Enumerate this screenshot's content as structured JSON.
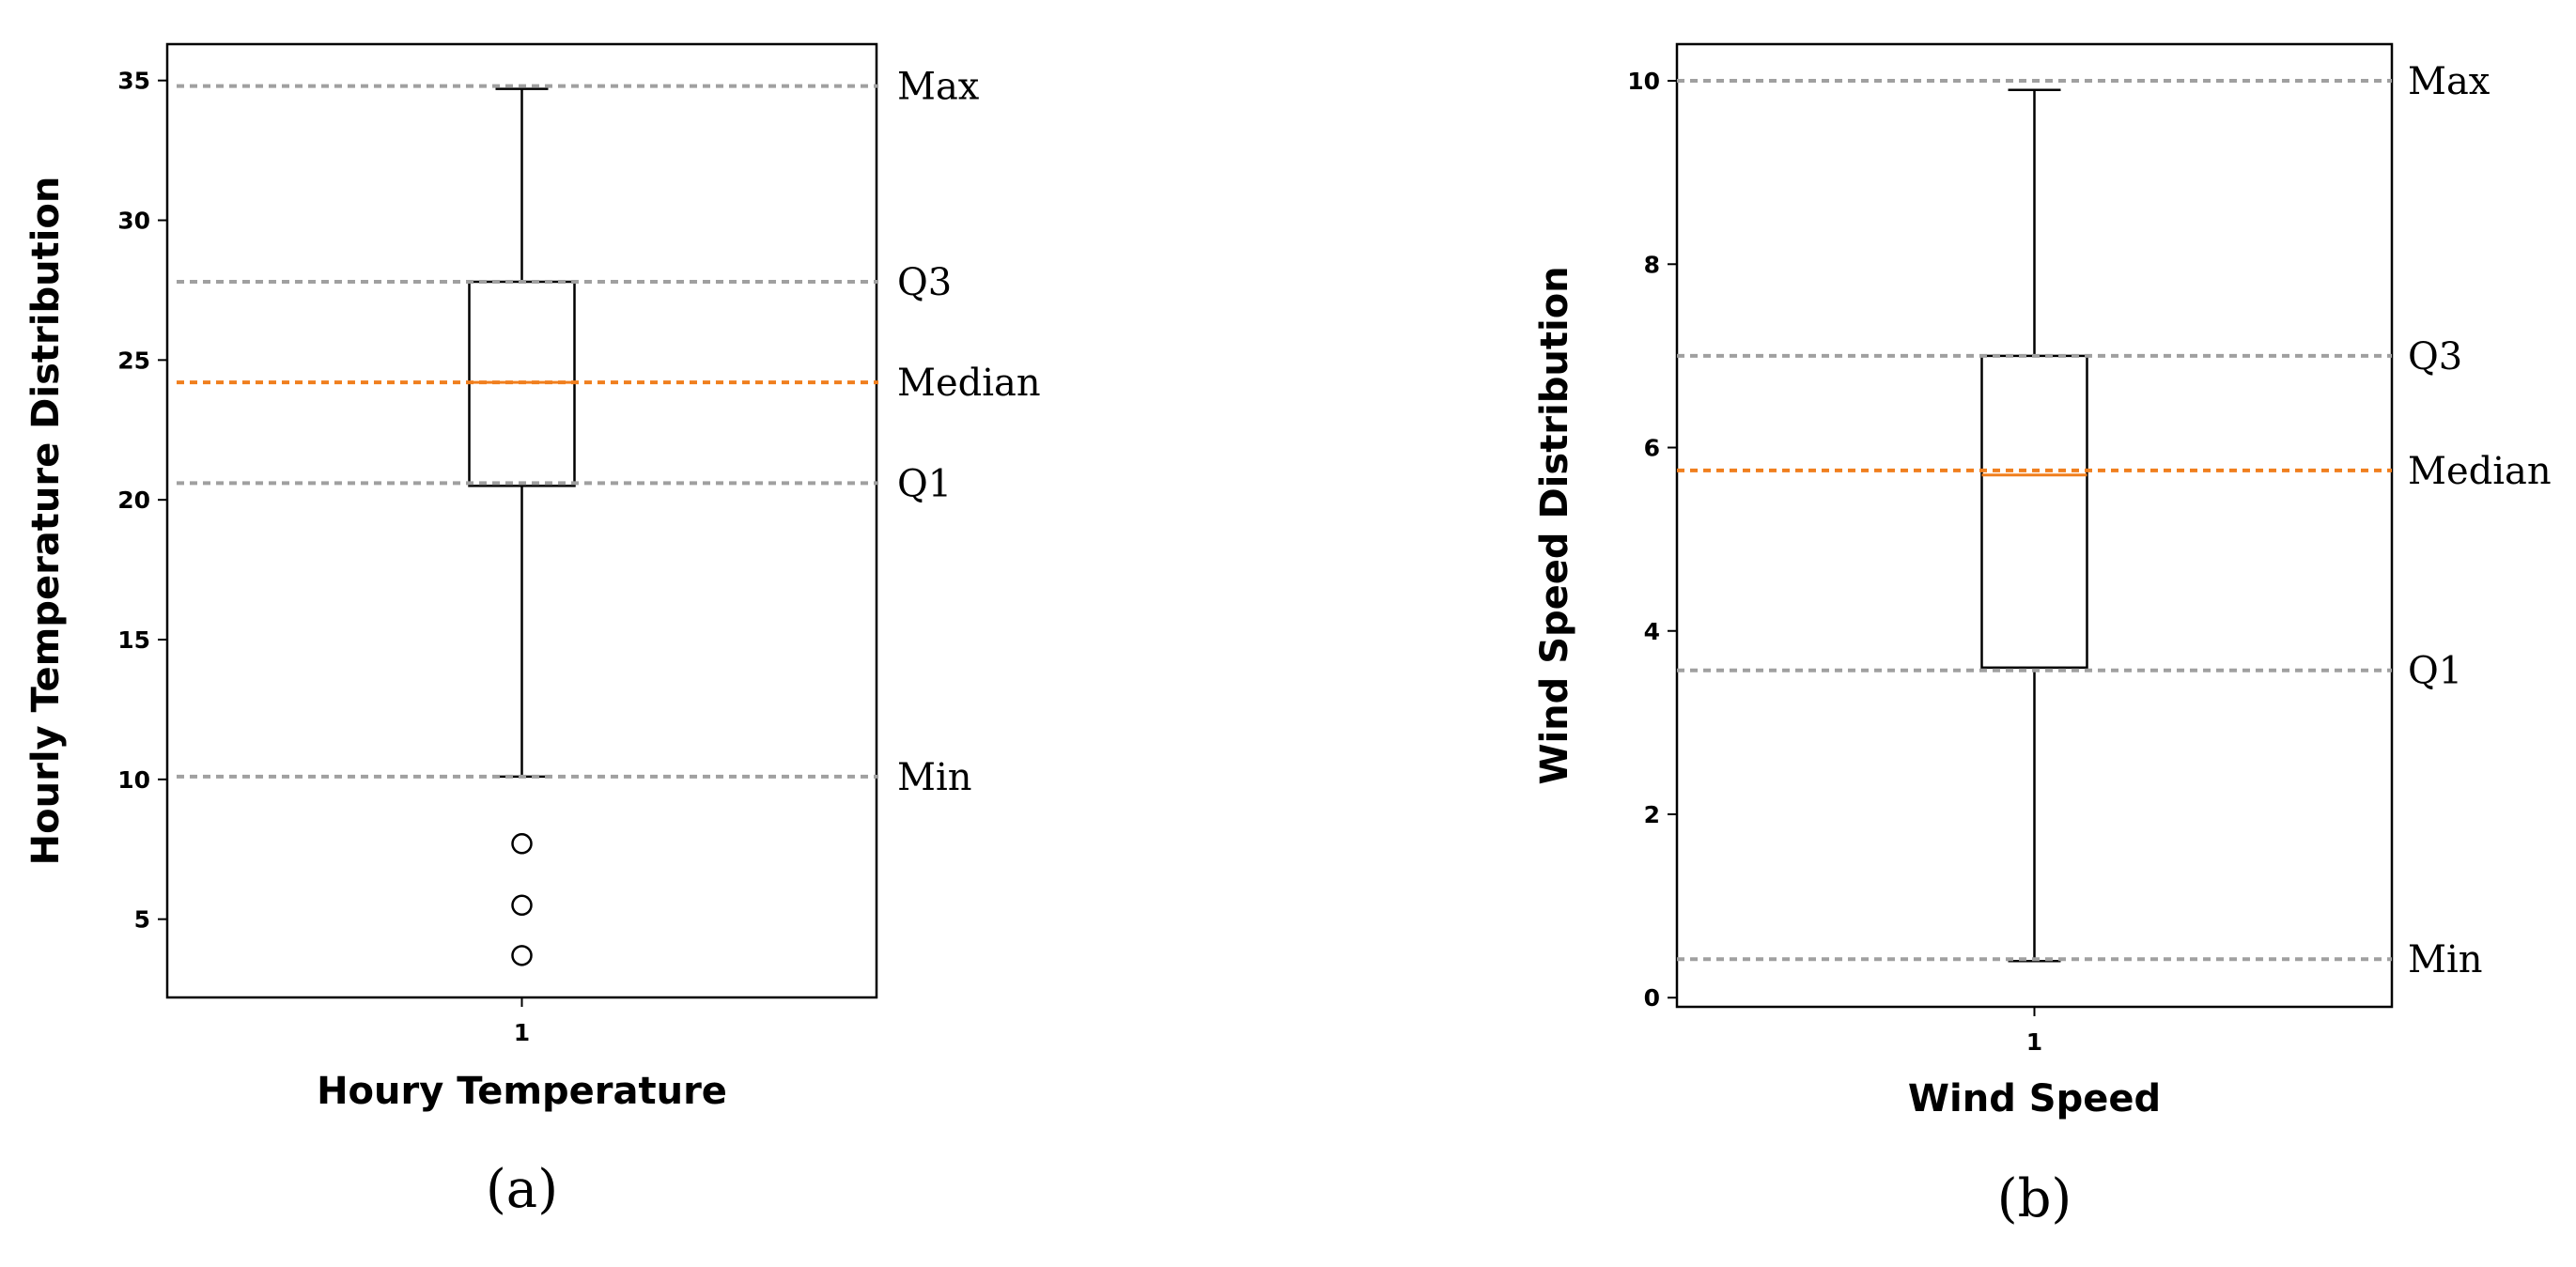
{
  "colors": {
    "reference_line": "#a0a0a0",
    "median_line": "#f07f1e",
    "box": "#000000"
  },
  "chart_data": [
    {
      "type": "box",
      "caption": "(a)",
      "xlabel": "Houry Temperature",
      "ylabel": "Hourly Temperature Distribution",
      "categories": [
        "1"
      ],
      "yticks": [
        "5",
        "10",
        "15",
        "20",
        "25",
        "30",
        "35"
      ],
      "ylim": [
        2.2,
        36.3
      ],
      "box": {
        "min": 10.1,
        "q1": 20.5,
        "median": 24.2,
        "q3": 27.8,
        "max": 34.7
      },
      "outliers": [
        7.7,
        5.5,
        3.7
      ],
      "reference_lines": [
        {
          "label": "Max",
          "value": 34.8,
          "style": "ref"
        },
        {
          "label": "Q3",
          "value": 27.8,
          "style": "ref"
        },
        {
          "label": "Median",
          "value": 24.2,
          "style": "median"
        },
        {
          "label": "Q1",
          "value": 20.6,
          "style": "ref"
        },
        {
          "label": "Min",
          "value": 10.1,
          "style": "ref"
        }
      ],
      "grid": false
    },
    {
      "type": "box",
      "caption": "(b)",
      "xlabel": "Wind Speed",
      "ylabel": "Wind Speed Distribution",
      "categories": [
        "1"
      ],
      "yticks": [
        "0",
        "2",
        "4",
        "6",
        "8",
        "10"
      ],
      "ylim": [
        -0.1,
        10.4
      ],
      "box": {
        "min": 0.4,
        "q1": 3.6,
        "median": 5.7,
        "q3": 7.0,
        "max": 9.9
      },
      "outliers": [],
      "reference_lines": [
        {
          "label": "Max",
          "value": 10.0,
          "style": "ref"
        },
        {
          "label": "Q3",
          "value": 7.0,
          "style": "ref"
        },
        {
          "label": "Median",
          "value": 5.75,
          "style": "median"
        },
        {
          "label": "Q1",
          "value": 3.57,
          "style": "ref"
        },
        {
          "label": "Min",
          "value": 0.42,
          "style": "ref"
        }
      ],
      "grid": false
    }
  ]
}
